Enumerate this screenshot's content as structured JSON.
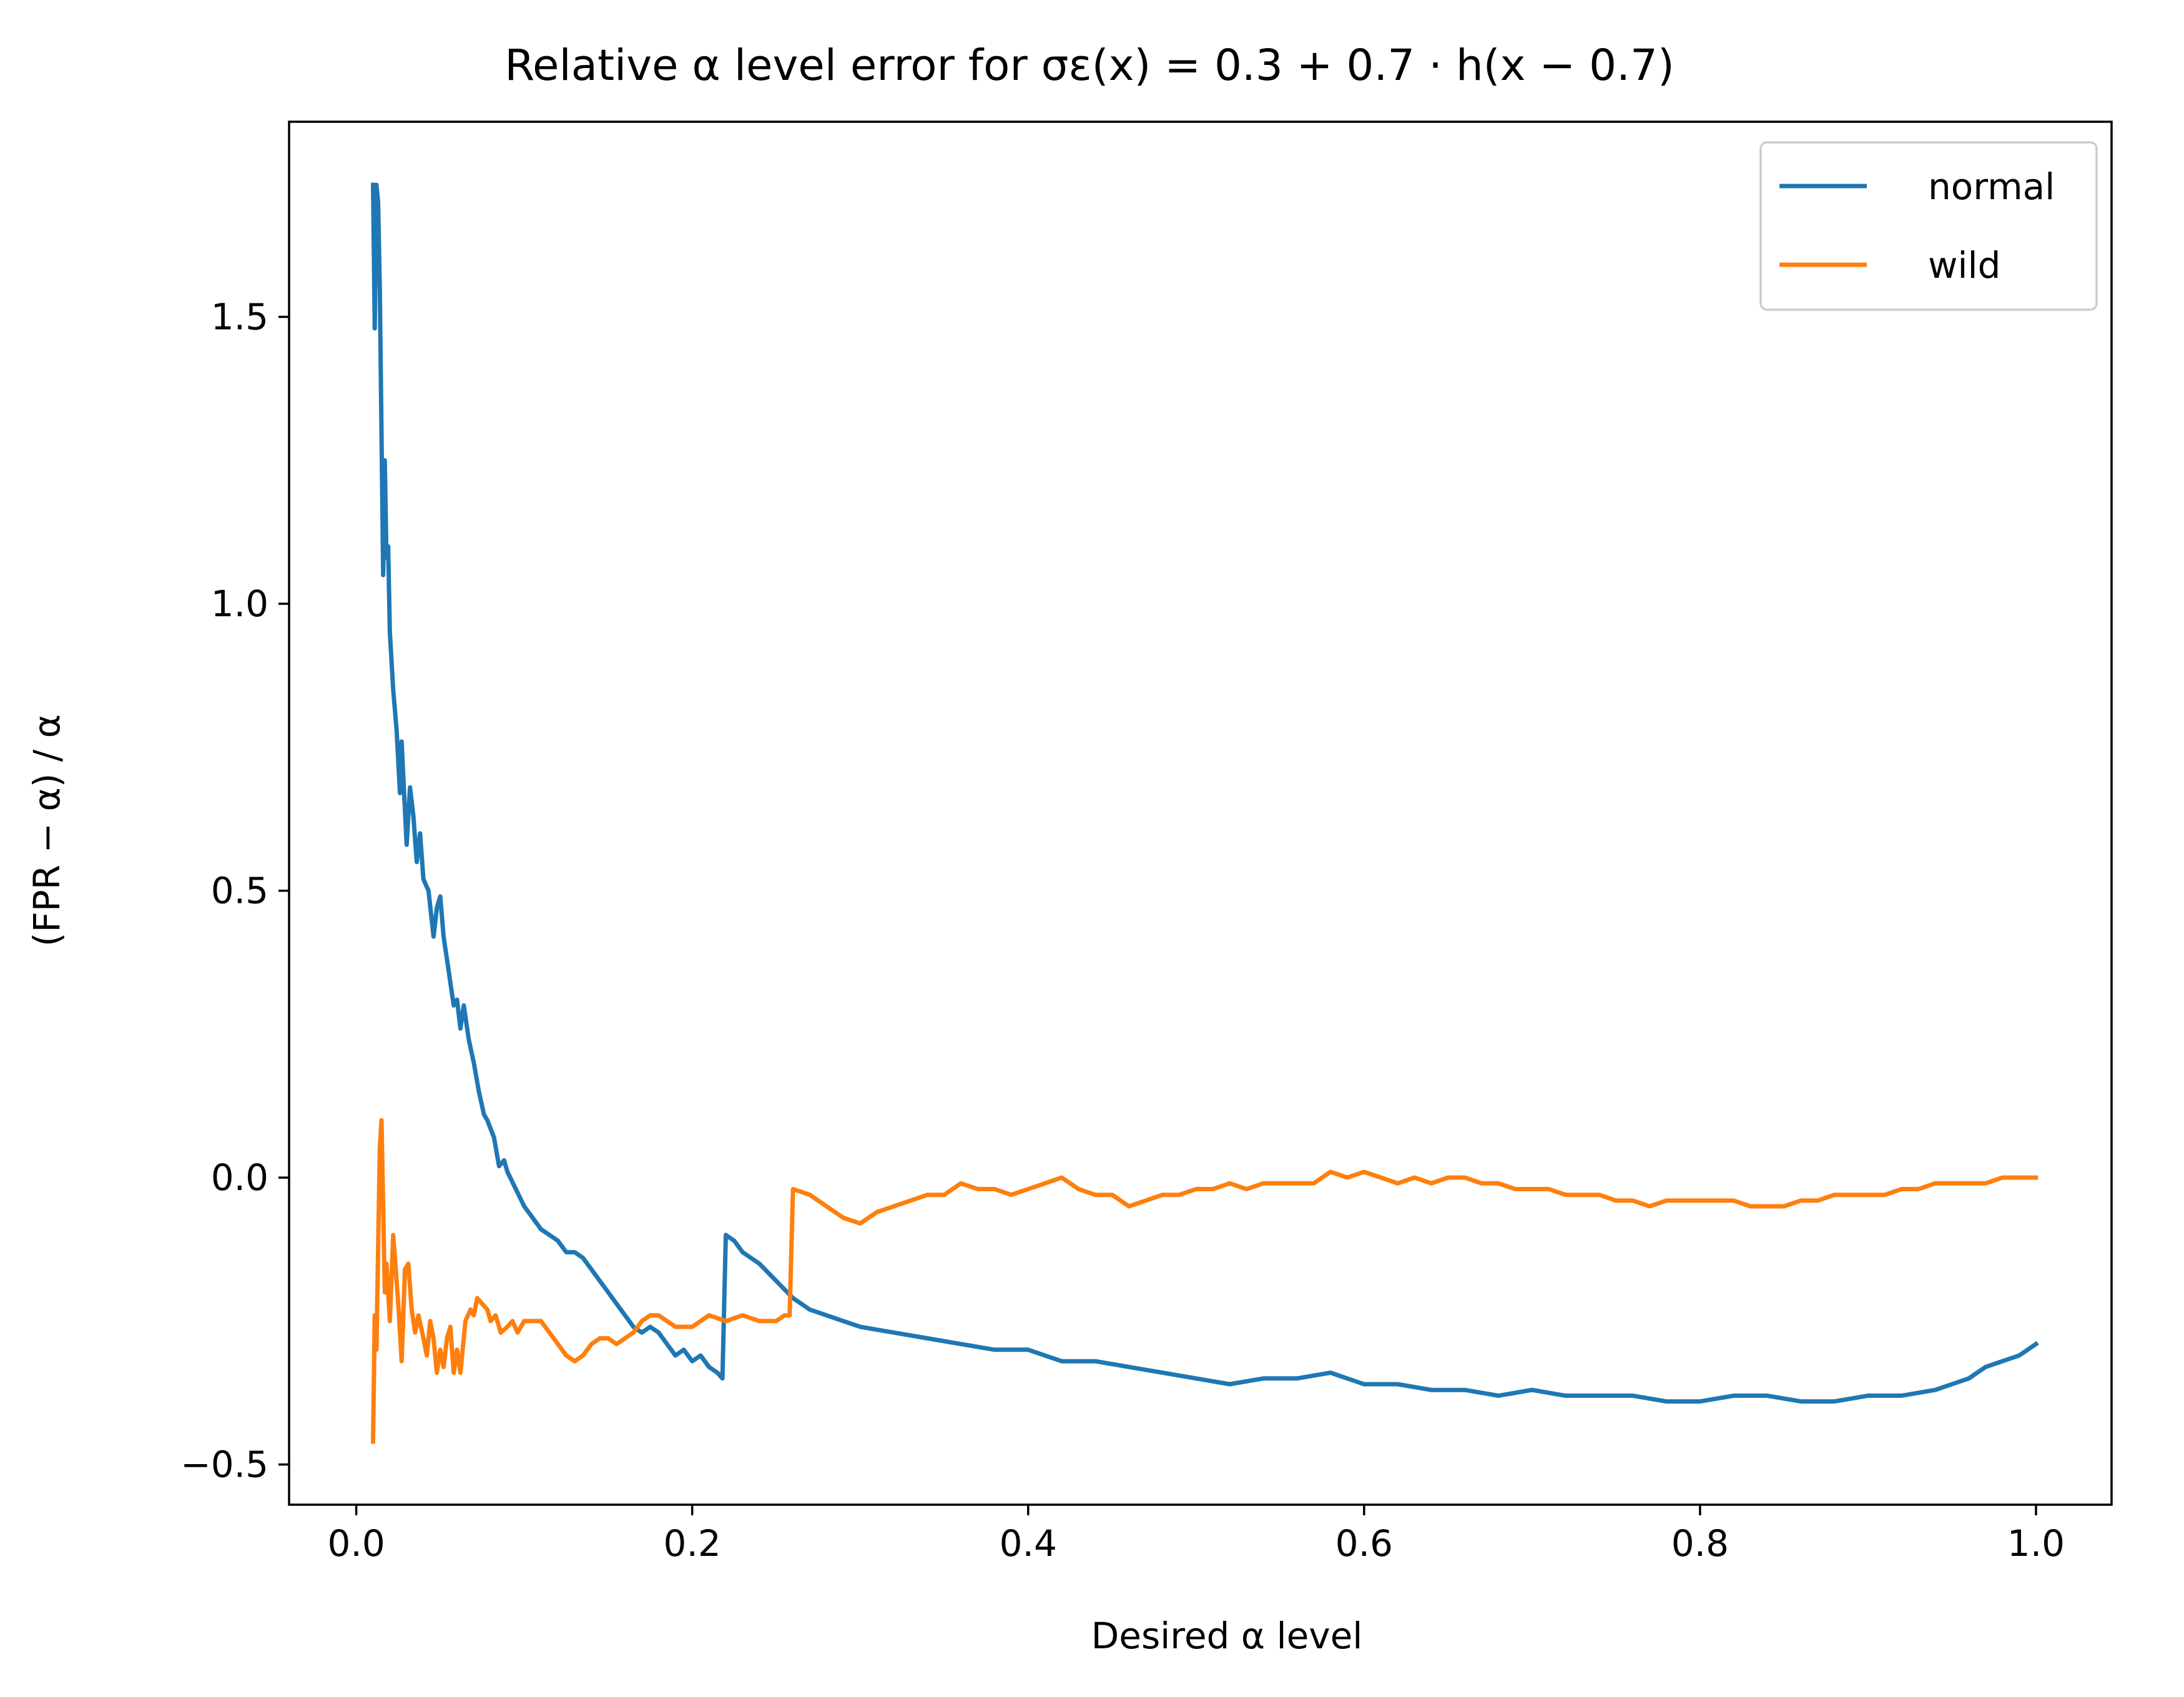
{
  "chart_data": {
    "type": "line",
    "title": "Relative α level error for σε(x) = 0.3 + 0.7 · h(x − 0.7)",
    "xlabel": "Desired α level",
    "ylabel": "(FPR − α) / α",
    "xlim": [
      -0.04,
      1.045
    ],
    "ylim": [
      -0.57,
      1.84
    ],
    "x_ticks": [
      0.0,
      0.2,
      0.4,
      0.6,
      0.8,
      1.0
    ],
    "x_tick_labels": [
      "0.0",
      "0.2",
      "0.4",
      "0.6",
      "0.8",
      "1.0"
    ],
    "y_ticks": [
      -0.5,
      0.0,
      0.5,
      1.0,
      1.5
    ],
    "y_tick_labels": [
      "−0.5",
      "0.0",
      "0.5",
      "1.0",
      "1.5"
    ],
    "grid": false,
    "legend": "top-right",
    "series": [
      {
        "name": "normal",
        "color": "#1f77b4",
        "points": [
          [
            0.01,
            1.73
          ],
          [
            0.011,
            1.48
          ],
          [
            0.012,
            1.73
          ],
          [
            0.013,
            1.7
          ],
          [
            0.014,
            1.55
          ],
          [
            0.015,
            1.3
          ],
          [
            0.016,
            1.05
          ],
          [
            0.017,
            1.25
          ],
          [
            0.018,
            1.08
          ],
          [
            0.019,
            1.1
          ],
          [
            0.02,
            0.95
          ],
          [
            0.022,
            0.85
          ],
          [
            0.024,
            0.78
          ],
          [
            0.026,
            0.67
          ],
          [
            0.027,
            0.76
          ],
          [
            0.028,
            0.7
          ],
          [
            0.03,
            0.58
          ],
          [
            0.032,
            0.68
          ],
          [
            0.034,
            0.63
          ],
          [
            0.036,
            0.55
          ],
          [
            0.038,
            0.6
          ],
          [
            0.04,
            0.52
          ],
          [
            0.043,
            0.5
          ],
          [
            0.046,
            0.42
          ],
          [
            0.048,
            0.47
          ],
          [
            0.05,
            0.49
          ],
          [
            0.052,
            0.42
          ],
          [
            0.055,
            0.36
          ],
          [
            0.058,
            0.3
          ],
          [
            0.06,
            0.31
          ],
          [
            0.062,
            0.26
          ],
          [
            0.064,
            0.3
          ],
          [
            0.067,
            0.24
          ],
          [
            0.07,
            0.2
          ],
          [
            0.073,
            0.15
          ],
          [
            0.076,
            0.11
          ],
          [
            0.078,
            0.1
          ],
          [
            0.082,
            0.07
          ],
          [
            0.085,
            0.02
          ],
          [
            0.088,
            0.03
          ],
          [
            0.09,
            0.01
          ],
          [
            0.095,
            -0.02
          ],
          [
            0.1,
            -0.05
          ],
          [
            0.105,
            -0.07
          ],
          [
            0.11,
            -0.09
          ],
          [
            0.115,
            -0.1
          ],
          [
            0.12,
            -0.11
          ],
          [
            0.125,
            -0.13
          ],
          [
            0.13,
            -0.13
          ],
          [
            0.135,
            -0.14
          ],
          [
            0.14,
            -0.16
          ],
          [
            0.145,
            -0.18
          ],
          [
            0.15,
            -0.2
          ],
          [
            0.155,
            -0.22
          ],
          [
            0.16,
            -0.24
          ],
          [
            0.165,
            -0.26
          ],
          [
            0.17,
            -0.27
          ],
          [
            0.175,
            -0.26
          ],
          [
            0.18,
            -0.27
          ],
          [
            0.185,
            -0.29
          ],
          [
            0.19,
            -0.31
          ],
          [
            0.195,
            -0.3
          ],
          [
            0.2,
            -0.32
          ],
          [
            0.205,
            -0.31
          ],
          [
            0.21,
            -0.33
          ],
          [
            0.215,
            -0.34
          ],
          [
            0.218,
            -0.35
          ],
          [
            0.22,
            -0.1
          ],
          [
            0.225,
            -0.11
          ],
          [
            0.23,
            -0.13
          ],
          [
            0.24,
            -0.15
          ],
          [
            0.25,
            -0.18
          ],
          [
            0.26,
            -0.21
          ],
          [
            0.27,
            -0.23
          ],
          [
            0.28,
            -0.24
          ],
          [
            0.29,
            -0.25
          ],
          [
            0.3,
            -0.26
          ],
          [
            0.32,
            -0.27
          ],
          [
            0.34,
            -0.28
          ],
          [
            0.36,
            -0.29
          ],
          [
            0.38,
            -0.3
          ],
          [
            0.4,
            -0.3
          ],
          [
            0.42,
            -0.32
          ],
          [
            0.44,
            -0.32
          ],
          [
            0.46,
            -0.33
          ],
          [
            0.48,
            -0.34
          ],
          [
            0.5,
            -0.35
          ],
          [
            0.52,
            -0.36
          ],
          [
            0.54,
            -0.35
          ],
          [
            0.56,
            -0.35
          ],
          [
            0.58,
            -0.34
          ],
          [
            0.6,
            -0.36
          ],
          [
            0.62,
            -0.36
          ],
          [
            0.64,
            -0.37
          ],
          [
            0.66,
            -0.37
          ],
          [
            0.68,
            -0.38
          ],
          [
            0.7,
            -0.37
          ],
          [
            0.72,
            -0.38
          ],
          [
            0.74,
            -0.38
          ],
          [
            0.76,
            -0.38
          ],
          [
            0.78,
            -0.39
          ],
          [
            0.8,
            -0.39
          ],
          [
            0.82,
            -0.38
          ],
          [
            0.84,
            -0.38
          ],
          [
            0.86,
            -0.39
          ],
          [
            0.88,
            -0.39
          ],
          [
            0.9,
            -0.38
          ],
          [
            0.92,
            -0.38
          ],
          [
            0.94,
            -0.37
          ],
          [
            0.95,
            -0.36
          ],
          [
            0.96,
            -0.35
          ],
          [
            0.97,
            -0.33
          ],
          [
            0.98,
            -0.32
          ],
          [
            0.99,
            -0.31
          ],
          [
            0.995,
            -0.3
          ],
          [
            1.0,
            -0.29
          ]
        ]
      },
      {
        "name": "wild",
        "color": "#ff7f0e",
        "points": [
          [
            0.01,
            -0.46
          ],
          [
            0.011,
            -0.24
          ],
          [
            0.012,
            -0.3
          ],
          [
            0.014,
            0.05
          ],
          [
            0.015,
            0.1
          ],
          [
            0.016,
            -0.05
          ],
          [
            0.017,
            -0.2
          ],
          [
            0.018,
            -0.15
          ],
          [
            0.02,
            -0.25
          ],
          [
            0.022,
            -0.1
          ],
          [
            0.025,
            -0.22
          ],
          [
            0.027,
            -0.32
          ],
          [
            0.029,
            -0.16
          ],
          [
            0.031,
            -0.15
          ],
          [
            0.033,
            -0.23
          ],
          [
            0.035,
            -0.27
          ],
          [
            0.037,
            -0.24
          ],
          [
            0.04,
            -0.28
          ],
          [
            0.042,
            -0.31
          ],
          [
            0.044,
            -0.25
          ],
          [
            0.046,
            -0.28
          ],
          [
            0.048,
            -0.34
          ],
          [
            0.05,
            -0.3
          ],
          [
            0.052,
            -0.33
          ],
          [
            0.054,
            -0.28
          ],
          [
            0.056,
            -0.26
          ],
          [
            0.058,
            -0.34
          ],
          [
            0.06,
            -0.3
          ],
          [
            0.062,
            -0.34
          ],
          [
            0.065,
            -0.25
          ],
          [
            0.068,
            -0.23
          ],
          [
            0.07,
            -0.24
          ],
          [
            0.072,
            -0.21
          ],
          [
            0.075,
            -0.22
          ],
          [
            0.078,
            -0.23
          ],
          [
            0.08,
            -0.25
          ],
          [
            0.083,
            -0.24
          ],
          [
            0.086,
            -0.27
          ],
          [
            0.09,
            -0.26
          ],
          [
            0.093,
            -0.25
          ],
          [
            0.096,
            -0.27
          ],
          [
            0.1,
            -0.25
          ],
          [
            0.105,
            -0.25
          ],
          [
            0.11,
            -0.25
          ],
          [
            0.115,
            -0.27
          ],
          [
            0.12,
            -0.29
          ],
          [
            0.125,
            -0.31
          ],
          [
            0.13,
            -0.32
          ],
          [
            0.135,
            -0.31
          ],
          [
            0.14,
            -0.29
          ],
          [
            0.145,
            -0.28
          ],
          [
            0.15,
            -0.28
          ],
          [
            0.155,
            -0.29
          ],
          [
            0.16,
            -0.28
          ],
          [
            0.165,
            -0.27
          ],
          [
            0.17,
            -0.25
          ],
          [
            0.175,
            -0.24
          ],
          [
            0.18,
            -0.24
          ],
          [
            0.185,
            -0.25
          ],
          [
            0.19,
            -0.26
          ],
          [
            0.2,
            -0.26
          ],
          [
            0.21,
            -0.24
          ],
          [
            0.22,
            -0.25
          ],
          [
            0.23,
            -0.24
          ],
          [
            0.24,
            -0.25
          ],
          [
            0.25,
            -0.25
          ],
          [
            0.255,
            -0.24
          ],
          [
            0.258,
            -0.24
          ],
          [
            0.26,
            -0.02
          ],
          [
            0.27,
            -0.03
          ],
          [
            0.28,
            -0.05
          ],
          [
            0.29,
            -0.07
          ],
          [
            0.3,
            -0.08
          ],
          [
            0.31,
            -0.06
          ],
          [
            0.32,
            -0.05
          ],
          [
            0.33,
            -0.04
          ],
          [
            0.34,
            -0.03
          ],
          [
            0.35,
            -0.03
          ],
          [
            0.36,
            -0.01
          ],
          [
            0.37,
            -0.02
          ],
          [
            0.38,
            -0.02
          ],
          [
            0.39,
            -0.03
          ],
          [
            0.4,
            -0.02
          ],
          [
            0.41,
            -0.01
          ],
          [
            0.42,
            0.0
          ],
          [
            0.43,
            -0.02
          ],
          [
            0.44,
            -0.03
          ],
          [
            0.45,
            -0.03
          ],
          [
            0.46,
            -0.05
          ],
          [
            0.47,
            -0.04
          ],
          [
            0.48,
            -0.03
          ],
          [
            0.49,
            -0.03
          ],
          [
            0.5,
            -0.02
          ],
          [
            0.51,
            -0.02
          ],
          [
            0.52,
            -0.01
          ],
          [
            0.53,
            -0.02
          ],
          [
            0.54,
            -0.01
          ],
          [
            0.55,
            -0.01
          ],
          [
            0.56,
            -0.01
          ],
          [
            0.57,
            -0.01
          ],
          [
            0.58,
            0.01
          ],
          [
            0.59,
            0.0
          ],
          [
            0.6,
            0.01
          ],
          [
            0.61,
            0.0
          ],
          [
            0.62,
            -0.01
          ],
          [
            0.63,
            0.0
          ],
          [
            0.64,
            -0.01
          ],
          [
            0.65,
            0.0
          ],
          [
            0.66,
            0.0
          ],
          [
            0.67,
            -0.01
          ],
          [
            0.68,
            -0.01
          ],
          [
            0.69,
            -0.02
          ],
          [
            0.7,
            -0.02
          ],
          [
            0.71,
            -0.02
          ],
          [
            0.72,
            -0.03
          ],
          [
            0.73,
            -0.03
          ],
          [
            0.74,
            -0.03
          ],
          [
            0.75,
            -0.04
          ],
          [
            0.76,
            -0.04
          ],
          [
            0.77,
            -0.05
          ],
          [
            0.78,
            -0.04
          ],
          [
            0.79,
            -0.04
          ],
          [
            0.8,
            -0.04
          ],
          [
            0.81,
            -0.04
          ],
          [
            0.82,
            -0.04
          ],
          [
            0.83,
            -0.05
          ],
          [
            0.84,
            -0.05
          ],
          [
            0.85,
            -0.05
          ],
          [
            0.86,
            -0.04
          ],
          [
            0.87,
            -0.04
          ],
          [
            0.88,
            -0.03
          ],
          [
            0.89,
            -0.03
          ],
          [
            0.9,
            -0.03
          ],
          [
            0.91,
            -0.03
          ],
          [
            0.92,
            -0.02
          ],
          [
            0.93,
            -0.02
          ],
          [
            0.94,
            -0.01
          ],
          [
            0.95,
            -0.01
          ],
          [
            0.96,
            -0.01
          ],
          [
            0.97,
            -0.01
          ],
          [
            0.98,
            0.0
          ],
          [
            0.99,
            0.0
          ],
          [
            1.0,
            0.0
          ]
        ]
      }
    ]
  }
}
